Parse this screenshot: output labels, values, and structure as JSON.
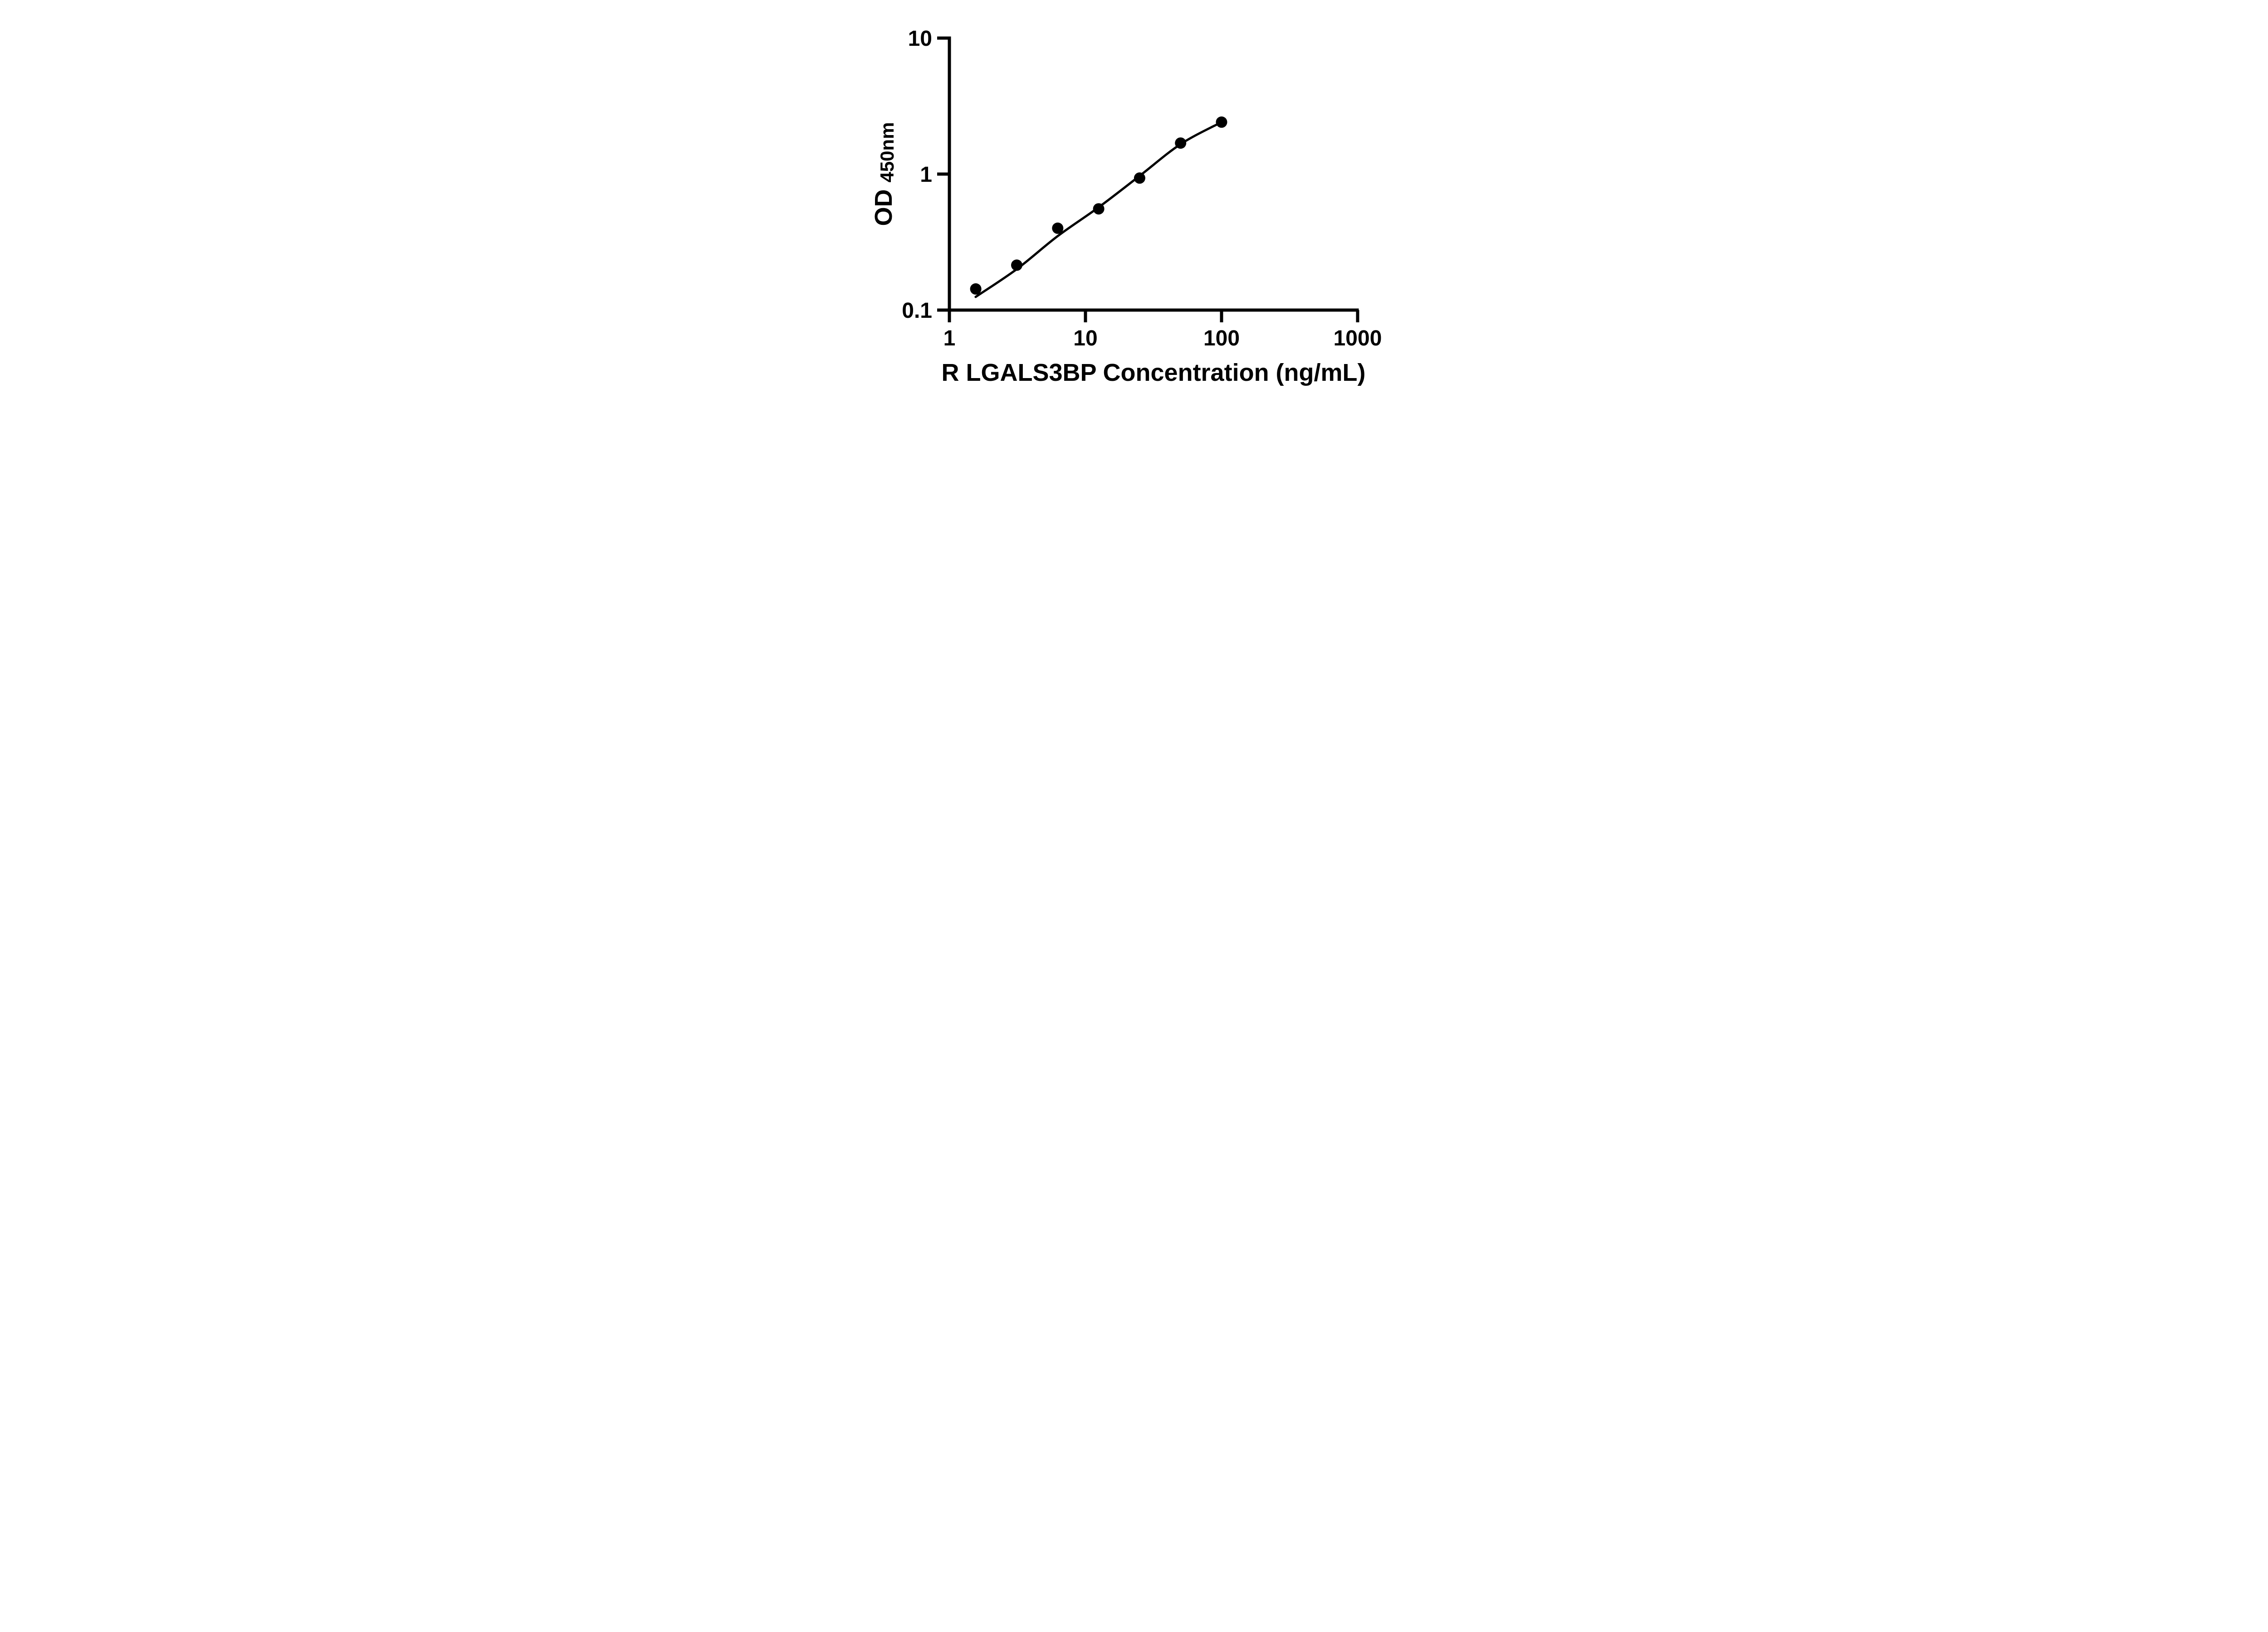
{
  "figure": {
    "background_color": "#ffffff",
    "ink_color": "#000000"
  },
  "chart_data": {
    "type": "scatter",
    "title": "",
    "xlabel": "R LGALS3BP Concentration (ng/mL)",
    "ylabel": "OD",
    "ylabel_subscript": "450nm",
    "x_scale": "log",
    "y_scale": "log",
    "xlim": [
      1,
      1000
    ],
    "ylim": [
      0.1,
      10
    ],
    "grid": false,
    "legend": null,
    "marker": "filled-circle",
    "marker_color": "#000000",
    "curve_color": "#000000",
    "x_ticks": [
      {
        "value": 1,
        "label": "1"
      },
      {
        "value": 10,
        "label": "10"
      },
      {
        "value": 100,
        "label": "100"
      },
      {
        "value": 1000,
        "label": "1000"
      }
    ],
    "y_ticks": [
      {
        "value": 0.1,
        "label": "0.1"
      },
      {
        "value": 1,
        "label": "1"
      },
      {
        "value": 10,
        "label": "10"
      }
    ],
    "points": [
      {
        "x": 1.5625,
        "y": 0.143
      },
      {
        "x": 3.125,
        "y": 0.214
      },
      {
        "x": 6.25,
        "y": 0.4
      },
      {
        "x": 12.5,
        "y": 0.555
      },
      {
        "x": 25,
        "y": 0.935
      },
      {
        "x": 50,
        "y": 1.69
      },
      {
        "x": 100,
        "y": 2.41
      }
    ],
    "fit_curve_points": [
      {
        "x": 1.56,
        "y": 0.125
      },
      {
        "x": 3.125,
        "y": 0.2
      },
      {
        "x": 6.25,
        "y": 0.35
      },
      {
        "x": 12.5,
        "y": 0.57
      },
      {
        "x": 25,
        "y": 0.97
      },
      {
        "x": 50,
        "y": 1.66
      },
      {
        "x": 100,
        "y": 2.41
      }
    ]
  }
}
